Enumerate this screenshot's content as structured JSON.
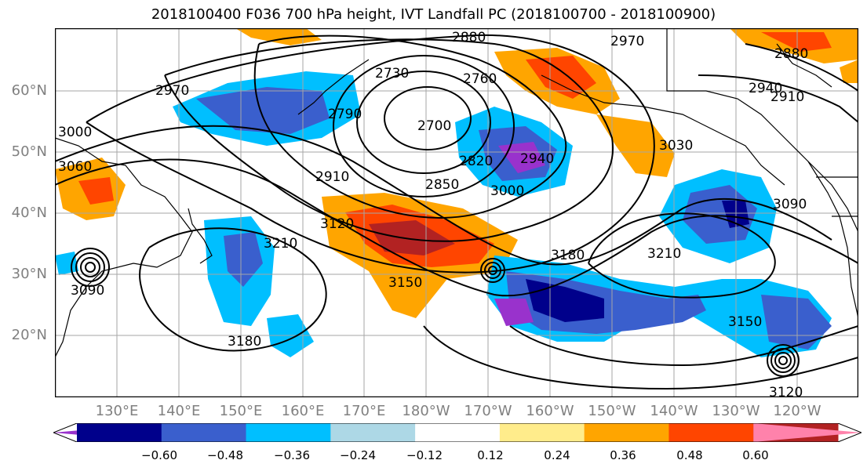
{
  "title": "2018100400 F036 700 hPa height, IVT Landfall PC (2018100700 - 2018100900)",
  "map": {
    "lat_labels": [
      "60°N",
      "50°N",
      "40°N",
      "30°N",
      "20°N"
    ],
    "lon_labels": [
      "130°E",
      "140°E",
      "150°E",
      "160°E",
      "170°E",
      "180°W",
      "170°W",
      "160°W",
      "150°W",
      "140°W",
      "130°W",
      "120°W"
    ],
    "contour_labels": [
      "2880",
      "2970",
      "2880",
      "2910",
      "2940",
      "2730",
      "2760",
      "2790",
      "2700",
      "2820",
      "2850",
      "2940",
      "3000",
      "2970",
      "3000",
      "3060",
      "2910",
      "3030",
      "3120",
      "3210",
      "3090",
      "3150",
      "3180",
      "3210",
      "3180",
      "3150",
      "3120",
      "3090"
    ]
  },
  "colorbar": {
    "colors": [
      "#9932cc",
      "#00008b",
      "#3a5fcd",
      "#00bfff",
      "#add8e6",
      "#ffffff",
      "#ffec8b",
      "#ffa500",
      "#ff4500",
      "#b22222",
      "#ff82ab"
    ],
    "ticks": [
      "−0.60",
      "−0.48",
      "−0.36",
      "−0.24",
      "−0.12",
      "0.12",
      "0.24",
      "0.36",
      "0.48",
      "0.60"
    ]
  }
}
